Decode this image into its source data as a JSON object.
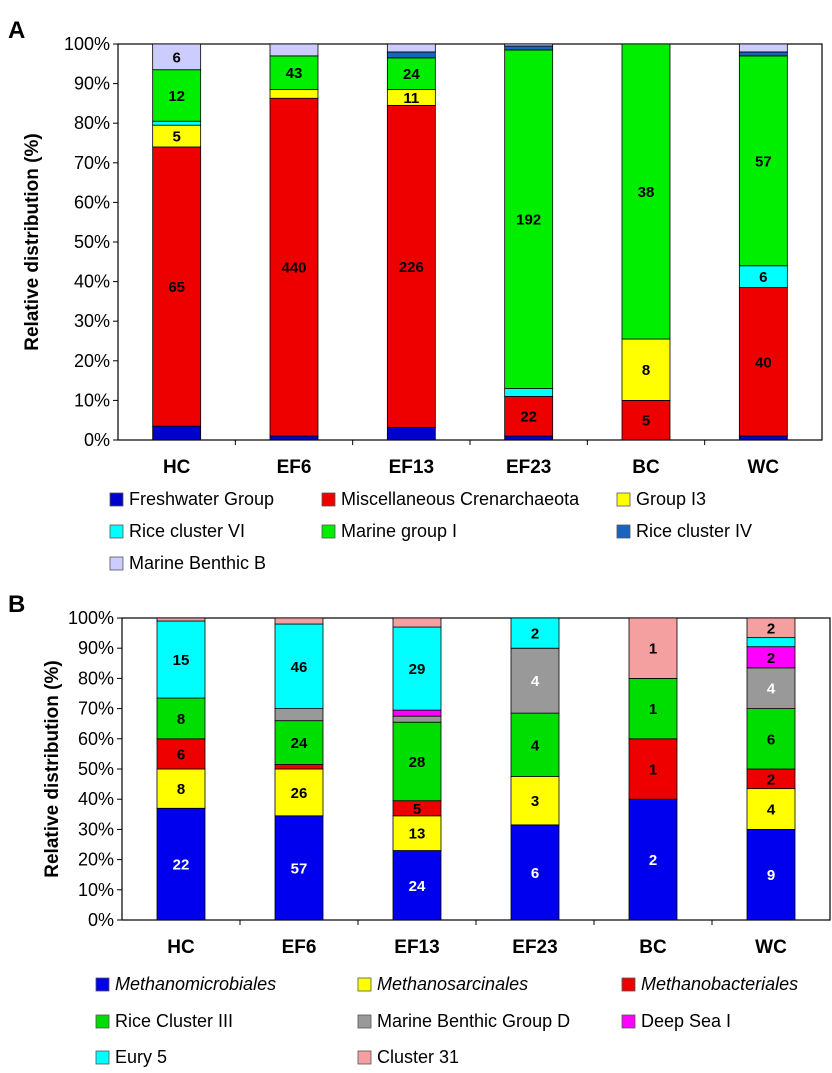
{
  "chart_data": [
    {
      "panel": "A",
      "type": "bar",
      "stacked": true,
      "percent": true,
      "ylabel": "Relative distribution (%)",
      "xlabel": "",
      "ylim": [
        0,
        100
      ],
      "yticks": [
        "0%",
        "10%",
        "20%",
        "30%",
        "40%",
        "50%",
        "60%",
        "70%",
        "80%",
        "90%",
        "100%"
      ],
      "categories": [
        "HC",
        "EF6",
        "EF13",
        "EF23",
        "BC",
        "WC"
      ],
      "series": [
        {
          "name": "Freshwater Group",
          "color": "#0000cc",
          "values": [
            3.5,
            1.0,
            3.2,
            1.0,
            0.0,
            1.0
          ],
          "labels": [
            "",
            "",
            "",
            "",
            "",
            ""
          ]
        },
        {
          "name": "Miscellaneous Crenarchaeota",
          "color": "#ee0000",
          "values": [
            70.5,
            85.3,
            81.3,
            10.0,
            10.0,
            37.5
          ],
          "labels": [
            "65",
            "440",
            "226",
            "22",
            "5",
            "40"
          ]
        },
        {
          "name": "Group I3",
          "color": "#ffff00",
          "values": [
            5.5,
            2.2,
            4.0,
            0.0,
            15.5,
            0.0
          ],
          "labels": [
            "5",
            "",
            "11",
            "",
            "8",
            ""
          ]
        },
        {
          "name": "Rice cluster VI",
          "color": "#00ffff",
          "values": [
            1.0,
            0.0,
            0.0,
            2.0,
            0.0,
            5.5
          ],
          "labels": [
            "",
            "",
            "",
            "",
            "",
            "6"
          ]
        },
        {
          "name": "Marine group I",
          "color": "#00ee00",
          "values": [
            13.0,
            8.5,
            8.0,
            85.5,
            74.5,
            53.0
          ],
          "labels": [
            "12",
            "43",
            "24",
            "192",
            "38",
            "57"
          ]
        },
        {
          "name": "Rice cluster IV",
          "color": "#1565c0",
          "values": [
            0.0,
            0.0,
            1.5,
            1.0,
            0.0,
            1.0
          ],
          "labels": [
            "",
            "",
            "",
            "",
            "",
            ""
          ]
        },
        {
          "name": "Marine Benthic B",
          "color": "#ccccff",
          "values": [
            6.5,
            3.0,
            2.0,
            0.5,
            0.0,
            2.0
          ],
          "labels": [
            "6",
            "",
            "",
            "",
            "",
            ""
          ]
        }
      ],
      "legend": [
        "Freshwater Group",
        "Miscellaneous Crenarchaeota",
        "Group I3",
        "Rice cluster VI",
        "Marine group I",
        "Rice cluster IV",
        "Marine Benthic B"
      ],
      "legend_position": "bottom"
    },
    {
      "panel": "B",
      "type": "bar",
      "stacked": true,
      "percent": true,
      "ylabel": "Relative distribution (%)",
      "xlabel": "",
      "ylim": [
        0,
        100
      ],
      "yticks": [
        "0%",
        "10%",
        "20%",
        "30%",
        "40%",
        "50%",
        "60%",
        "70%",
        "80%",
        "90%",
        "100%"
      ],
      "categories": [
        "HC",
        "EF6",
        "EF13",
        "EF23",
        "BC",
        "WC"
      ],
      "series": [
        {
          "name": "Methanomicrobiales",
          "italic": true,
          "color": "#0000ee",
          "values": [
            37,
            34.5,
            23,
            31.5,
            40,
            30
          ],
          "labels": [
            "22",
            "57",
            "24",
            "6",
            "2",
            "9"
          ]
        },
        {
          "name": "Methanosarcinales",
          "italic": true,
          "color": "#ffff00",
          "values": [
            13,
            15.5,
            11.5,
            16,
            0,
            13.5
          ],
          "labels": [
            "8",
            "26",
            "13",
            "3",
            "",
            "4"
          ]
        },
        {
          "name": "Methanobacteriales",
          "italic": true,
          "color": "#ee0000",
          "values": [
            10,
            1.5,
            5,
            0,
            20,
            6.5
          ],
          "labels": [
            "6",
            "",
            "5",
            "",
            "1",
            "2"
          ]
        },
        {
          "name": "Rice Cluster III",
          "color": "#00dd00",
          "values": [
            13.5,
            14.5,
            26,
            21,
            20,
            20
          ],
          "labels": [
            "8",
            "24",
            "28",
            "4",
            "1",
            "6"
          ]
        },
        {
          "name": "Marine Benthic Group D",
          "color": "#999999",
          "values": [
            0,
            4,
            2,
            21.5,
            0,
            13.5
          ],
          "labels": [
            "",
            "",
            "",
            "4",
            "",
            "4"
          ]
        },
        {
          "name": "Deep Sea I",
          "color": "#ff00ff",
          "values": [
            0,
            0,
            2,
            0,
            0,
            7
          ],
          "labels": [
            "",
            "",
            "",
            "",
            "",
            "2"
          ]
        },
        {
          "name": "Eury 5",
          "color": "#00ffff",
          "values": [
            25.5,
            28,
            27.5,
            10,
            0,
            3
          ],
          "labels": [
            "15",
            "46",
            "29",
            "2",
            "",
            ""
          ]
        },
        {
          "name": "Cluster 31",
          "color": "#f4a0a0",
          "values": [
            1,
            2,
            3,
            0,
            20,
            6.5
          ],
          "labels": [
            "",
            "",
            "",
            "",
            "1",
            "2"
          ]
        }
      ],
      "legend": [
        "Methanomicrobiales",
        "Methanosarcinales",
        "Methanobacteriales",
        "Rice Cluster III",
        "Marine Benthic Group D",
        "Deep Sea I",
        "Eury 5",
        "Cluster 31"
      ],
      "legend_position": "bottom"
    }
  ]
}
